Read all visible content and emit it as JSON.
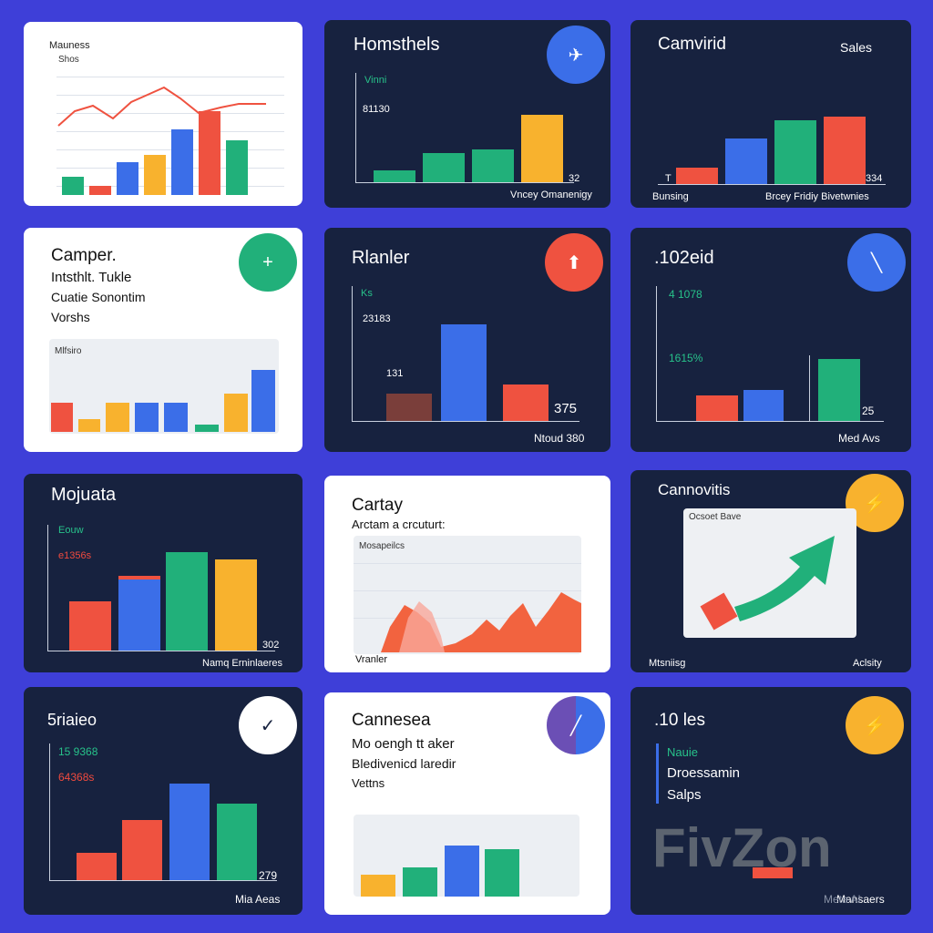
{
  "colors": {
    "background": "#3e3fd8",
    "dark_card": "#17223f",
    "green": "#21b07a",
    "blue": "#3b6ee8",
    "red": "#ef5240",
    "orange": "#f8b22e",
    "purple": "#6b4fb5"
  },
  "cards": [
    {
      "title": "Mauness",
      "subtitle": "Shos"
    },
    {
      "title": "Homsthels",
      "label_a": "Vinni",
      "label_b": "81130",
      "value": "32",
      "footer": "Vncey Omanenigy",
      "icon": "plane-icon"
    },
    {
      "title": "Camvirid",
      "label_right": "Sales",
      "label_a": "T",
      "value": "334",
      "footer_left": "Bunsing",
      "footer_right": "Brcey Fridiy Bivetwnies"
    },
    {
      "title": "Camper.",
      "line1": "Intsthlt. Tukle",
      "line2": "Cuatie Sonontim",
      "line3": "Vorshs",
      "panel_label": "Mlfsiro",
      "icon": "plus-icon"
    },
    {
      "title": "Rlanler",
      "label_a": "Ks",
      "label_b": "23183",
      "label_c": "131",
      "value": "375",
      "footer": "Ntoud 380",
      "icon": "arrow-icon"
    },
    {
      "title": ".102eid",
      "label_a": "4 1078",
      "label_b": "1615%",
      "value": "25",
      "footer": "Med Avs",
      "icon": "slash-icon"
    },
    {
      "title": "Mojuata",
      "label_a": "Eouw",
      "label_b": "e1356s",
      "value": "302",
      "footer": "Namq Erninlaeres"
    },
    {
      "title": "Cartay",
      "subtitle": "Arctam a crcuturt:",
      "panel_label": "Mosapeilcs",
      "footer_left": "Vranler"
    },
    {
      "title": "Cannovitis",
      "panel_label": "Ocsoet Bave",
      "footer_left": "Mtsniisg",
      "footer_right": "Aclsity",
      "icon": "lightning-icon"
    },
    {
      "title": "5riaieo",
      "label_a": "15 9368",
      "label_b": "64368s",
      "value": "279",
      "footer": "Mia Aeas",
      "icon": "check-icon"
    },
    {
      "title": "Cannesea",
      "line1": "Mo oengh tt aker",
      "line2": "Bledivenicd laredir",
      "line3": "Vettns",
      "icon": "clock-icon"
    },
    {
      "title": ".10 les",
      "line1": "Nauie",
      "line2": "Droessamin",
      "line3": "Salps",
      "logo": "FivZon",
      "footer": "Mansaers",
      "watermark": "Meta AI",
      "icon": "lightning-icon"
    }
  ]
}
